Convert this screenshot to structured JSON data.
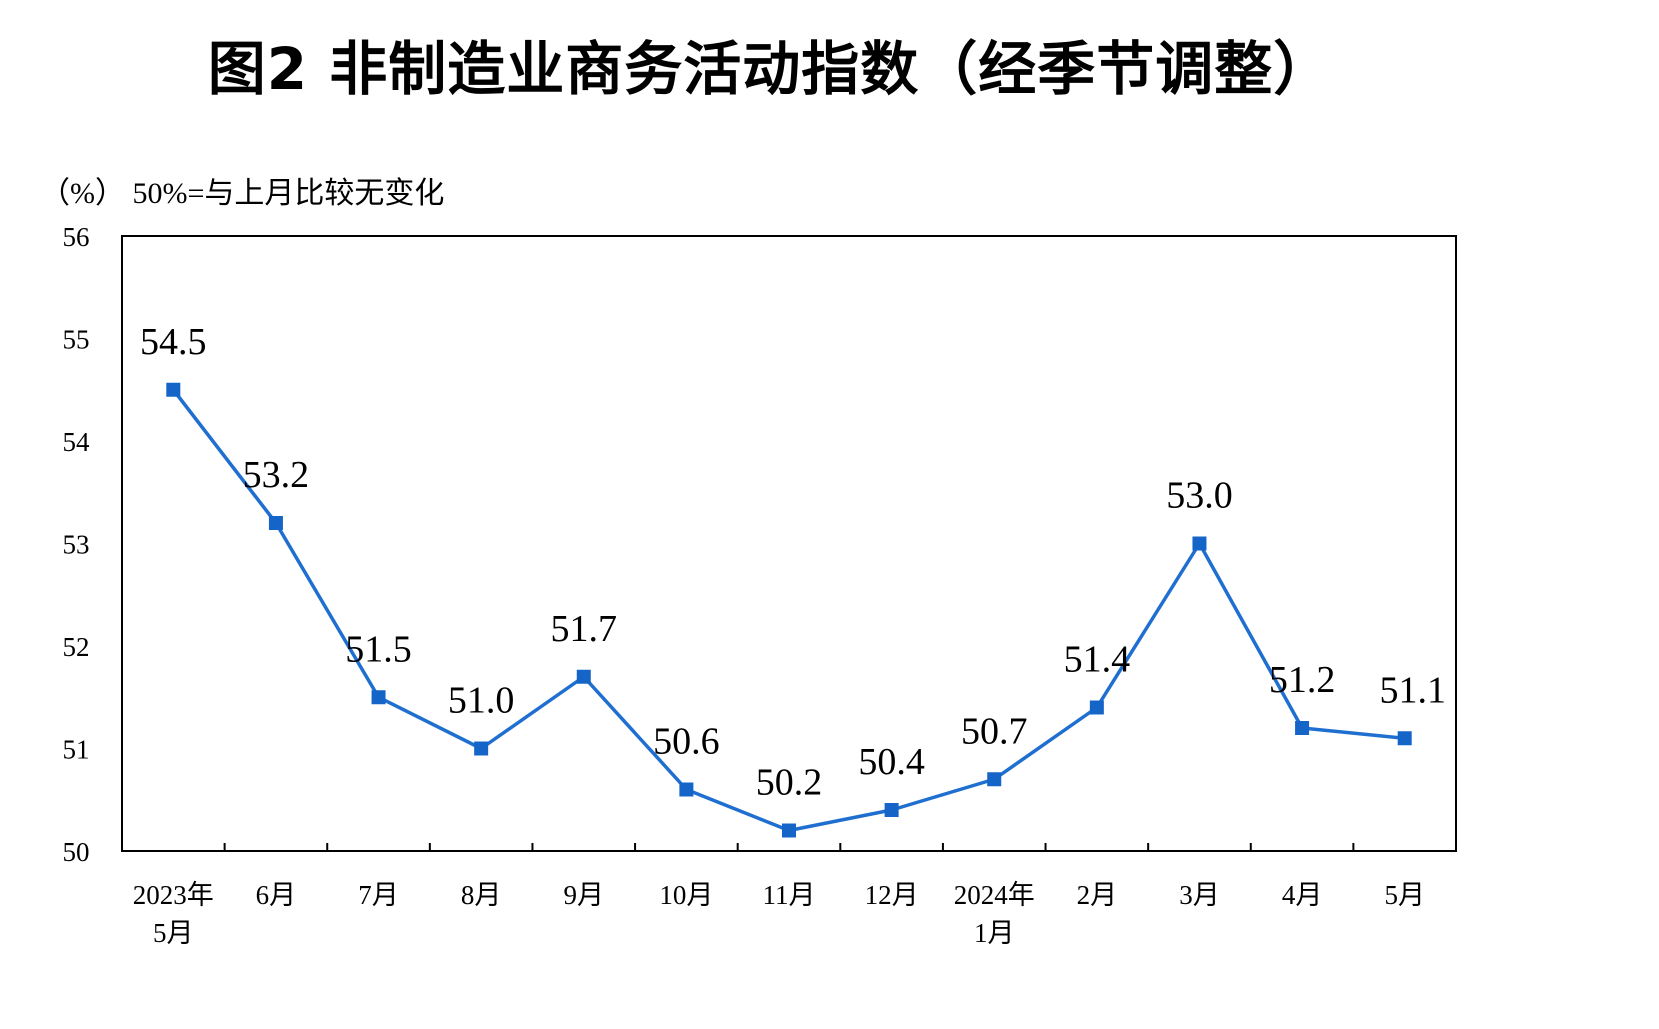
{
  "header": {
    "title": "图2 非制造业商务活动指数（经季节调整）",
    "unit_note": "（%） 50%=与上月比较无变化"
  },
  "colors": {
    "line": "#1F6FD0",
    "marker": "#1565C8",
    "axis": "#000000"
  },
  "chart_data": {
    "type": "line",
    "title": "图2 非制造业商务活动指数（经季节调整）",
    "ylabel": "（%）",
    "annotation": "50%=与上月比较无变化",
    "ylim": [
      50,
      56
    ],
    "yticks": [
      50,
      51,
      52,
      53,
      54,
      55,
      56
    ],
    "categories": [
      [
        "2023年",
        "5月"
      ],
      [
        "6月"
      ],
      [
        "7月"
      ],
      [
        "8月"
      ],
      [
        "9月"
      ],
      [
        "10月"
      ],
      [
        "11月"
      ],
      [
        "12月"
      ],
      [
        "2024年",
        "1月"
      ],
      [
        "2月"
      ],
      [
        "3月"
      ],
      [
        "4月"
      ],
      [
        "5月"
      ]
    ],
    "series": [
      {
        "values": [
          54.5,
          53.2,
          51.5,
          51.0,
          51.7,
          50.6,
          50.2,
          50.4,
          50.7,
          51.4,
          53.0,
          51.2,
          51.1
        ],
        "labels": [
          "54.5",
          "53.2",
          "51.5",
          "51.0",
          "51.7",
          "50.6",
          "50.2",
          "50.4",
          "50.7",
          "51.4",
          "53.0",
          "51.2",
          "51.1"
        ]
      }
    ],
    "grid": false,
    "legend": "none"
  }
}
